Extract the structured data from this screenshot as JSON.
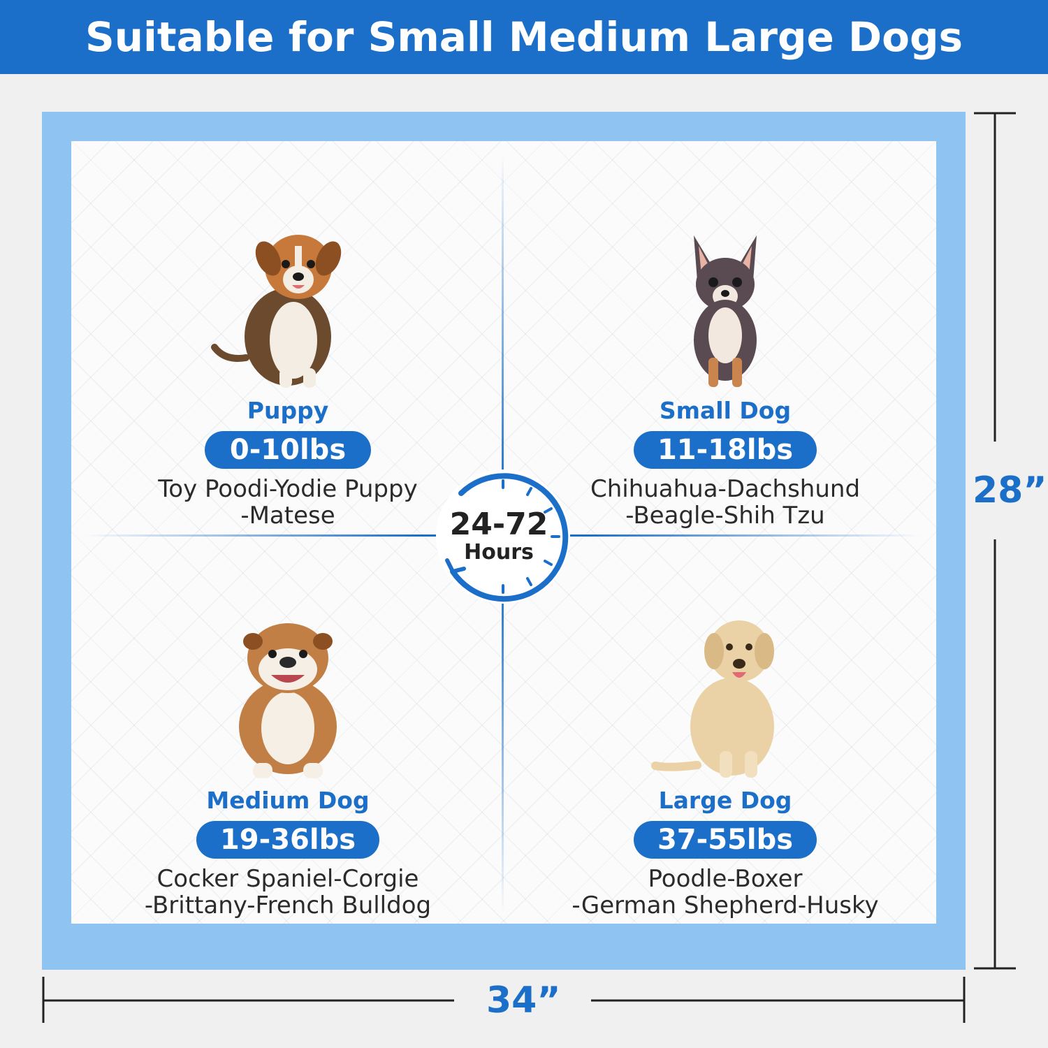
{
  "header": {
    "title": "Suitable for Small Medium Large Dogs"
  },
  "center_badge": {
    "range": "24-72",
    "label": "Hours"
  },
  "dimensions": {
    "height_label": "28”",
    "width_label": "34”"
  },
  "colors": {
    "brand_blue": "#1b6fc9",
    "pad_border": "#8ec3f2",
    "pad_surface": "#fbfbfb"
  },
  "quadrants": [
    {
      "name": "Puppy",
      "weight": "0-10lbs",
      "breeds_line1": "Toy Poodi-Yodie Puppy",
      "breeds_line2": "-Matese",
      "icon": "puppy-icon"
    },
    {
      "name": "Small Dog",
      "weight": "11-18lbs",
      "breeds_line1": "Chihuahua-Dachshund",
      "breeds_line2": "-Beagle-Shih Tzu",
      "icon": "chihuahua-icon"
    },
    {
      "name": "Medium Dog",
      "weight": "19-36lbs",
      "breeds_line1": "Cocker Spaniel-Corgie",
      "breeds_line2": "-Brittany-French Bulldog",
      "icon": "bulldog-icon"
    },
    {
      "name": "Large Dog",
      "weight": "37-55lbs",
      "breeds_line1": "Poodle-Boxer",
      "breeds_line2": "-German Shepherd-Husky",
      "icon": "labrador-icon"
    }
  ]
}
